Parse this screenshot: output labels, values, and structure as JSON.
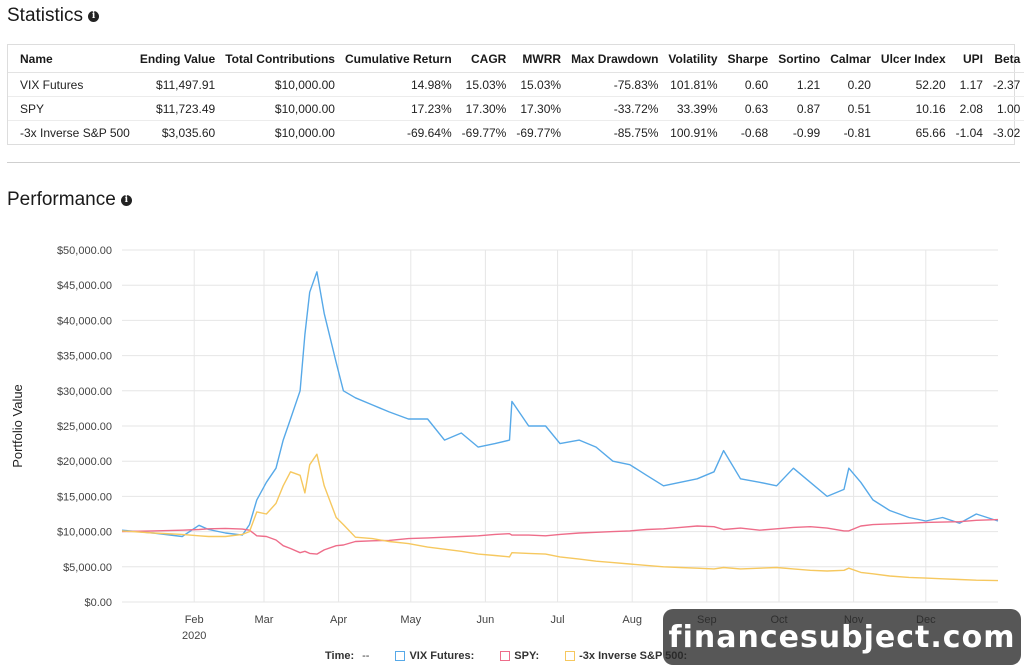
{
  "statistics": {
    "title": "Statistics",
    "info_icon": "i",
    "columns": [
      "Name",
      "Ending Value",
      "Total Contributions",
      "Cumulative Return",
      "CAGR",
      "MWRR",
      "Max Drawdown",
      "Volatility",
      "Sharpe",
      "Sortino",
      "Calmar",
      "Ulcer Index",
      "UPI",
      "Beta"
    ],
    "rows": [
      [
        "VIX Futures",
        "$11,497.91",
        "$10,000.00",
        "14.98%",
        "15.03%",
        "15.03%",
        "-75.83%",
        "101.81%",
        "0.60",
        "1.21",
        "0.20",
        "52.20",
        "1.17",
        "-2.37"
      ],
      [
        "SPY",
        "$11,723.49",
        "$10,000.00",
        "17.23%",
        "17.30%",
        "17.30%",
        "-33.72%",
        "33.39%",
        "0.63",
        "0.87",
        "0.51",
        "10.16",
        "2.08",
        "1.00"
      ],
      [
        "-3x Inverse S&P 500",
        "$3,035.60",
        "$10,000.00",
        "-69.64%",
        "-69.77%",
        "-69.77%",
        "-85.75%",
        "100.91%",
        "-0.68",
        "-0.99",
        "-0.81",
        "65.66",
        "-1.04",
        "-3.02"
      ]
    ]
  },
  "performance": {
    "title": "Performance",
    "info_icon": "i"
  },
  "legend": {
    "time_label": "Time:",
    "time_value": "--",
    "series_labels": [
      "VIX Futures:",
      "SPY:",
      "-3x Inverse S&P 500:"
    ]
  },
  "watermark": "financesubject.com",
  "chart_data": {
    "type": "line",
    "ylabel": "Portfolio Value",
    "xlabel": "",
    "ylim": [
      0,
      50000
    ],
    "yticks": [
      "$0.00",
      "$5,000.00",
      "$10,000.00",
      "$15,000.00",
      "$20,000.00",
      "$25,000.00",
      "$30,000.00",
      "$35,000.00",
      "$40,000.00",
      "$45,000.00",
      "$50,000.00"
    ],
    "xticks": [
      "Feb",
      "Mar",
      "Apr",
      "May",
      "Jun",
      "Jul",
      "Aug",
      "Sep",
      "Oct",
      "Nov",
      "Dec"
    ],
    "x_year_label": "2020",
    "grid": true,
    "legend_position": "bottom",
    "x": [
      "2020-01-02",
      "2020-01-15",
      "2020-01-27",
      "2020-02-03",
      "2020-02-07",
      "2020-02-14",
      "2020-02-21",
      "2020-02-24",
      "2020-02-27",
      "2020-03-02",
      "2020-03-06",
      "2020-03-09",
      "2020-03-12",
      "2020-03-16",
      "2020-03-18",
      "2020-03-20",
      "2020-03-23",
      "2020-03-26",
      "2020-03-31",
      "2020-04-03",
      "2020-04-08",
      "2020-04-15",
      "2020-04-22",
      "2020-04-30",
      "2020-05-08",
      "2020-05-15",
      "2020-05-22",
      "2020-05-29",
      "2020-06-05",
      "2020-06-11",
      "2020-06-12",
      "2020-06-19",
      "2020-06-26",
      "2020-07-02",
      "2020-07-10",
      "2020-07-17",
      "2020-07-24",
      "2020-07-31",
      "2020-08-07",
      "2020-08-14",
      "2020-08-21",
      "2020-08-28",
      "2020-09-04",
      "2020-09-08",
      "2020-09-15",
      "2020-09-23",
      "2020-09-30",
      "2020-10-07",
      "2020-10-14",
      "2020-10-21",
      "2020-10-28",
      "2020-10-30",
      "2020-11-04",
      "2020-11-09",
      "2020-11-16",
      "2020-11-24",
      "2020-12-01",
      "2020-12-08",
      "2020-12-15",
      "2020-12-22",
      "2020-12-31"
    ],
    "series": [
      {
        "name": "VIX Futures",
        "color": "#57a9e8",
        "values": [
          10200,
          9800,
          9300,
          10900,
          10300,
          9800,
          9500,
          11000,
          14500,
          17000,
          19000,
          23000,
          26000,
          30000,
          38000,
          44000,
          46900,
          41000,
          34000,
          30000,
          29000,
          28000,
          27000,
          26000,
          26000,
          23000,
          24000,
          22000,
          22500,
          23000,
          28500,
          25000,
          25000,
          22500,
          23000,
          22000,
          20000,
          19500,
          18000,
          16500,
          17000,
          17500,
          18500,
          21500,
          17500,
          17000,
          16500,
          19000,
          17000,
          15000,
          16000,
          19000,
          17000,
          14500,
          13000,
          12000,
          11500,
          12000,
          11200,
          12500,
          11500
        ]
      },
      {
        "name": "SPY",
        "color": "#ee6d8a",
        "values": [
          10000,
          10100,
          10200,
          10300,
          10400,
          10450,
          10350,
          10200,
          9400,
          9300,
          8800,
          8000,
          7600,
          7000,
          7200,
          6900,
          6800,
          7400,
          8000,
          8100,
          8600,
          8700,
          8750,
          9000,
          9100,
          9200,
          9300,
          9400,
          9600,
          9700,
          9500,
          9500,
          9400,
          9600,
          9800,
          9900,
          10000,
          10100,
          10300,
          10400,
          10600,
          10800,
          10700,
          10300,
          10500,
          10200,
          10400,
          10600,
          10700,
          10500,
          10100,
          10100,
          10800,
          11000,
          11100,
          11200,
          11300,
          11350,
          11400,
          11600,
          11700
        ]
      },
      {
        "name": "-3x Inverse S&P 500",
        "color": "#f6c85f",
        "values": [
          10100,
          9800,
          9600,
          9400,
          9300,
          9300,
          9600,
          10000,
          12800,
          12500,
          14000,
          16500,
          18500,
          18000,
          15500,
          19500,
          21000,
          16500,
          12000,
          11000,
          9200,
          9000,
          8600,
          8300,
          7800,
          7500,
          7200,
          6800,
          6600,
          6400,
          7000,
          6900,
          6800,
          6400,
          6100,
          5800,
          5600,
          5400,
          5200,
          5000,
          4900,
          4800,
          4700,
          4900,
          4700,
          4800,
          4900,
          4700,
          4500,
          4400,
          4500,
          4800,
          4200,
          4000,
          3700,
          3500,
          3400,
          3300,
          3200,
          3100,
          3040
        ]
      }
    ]
  }
}
